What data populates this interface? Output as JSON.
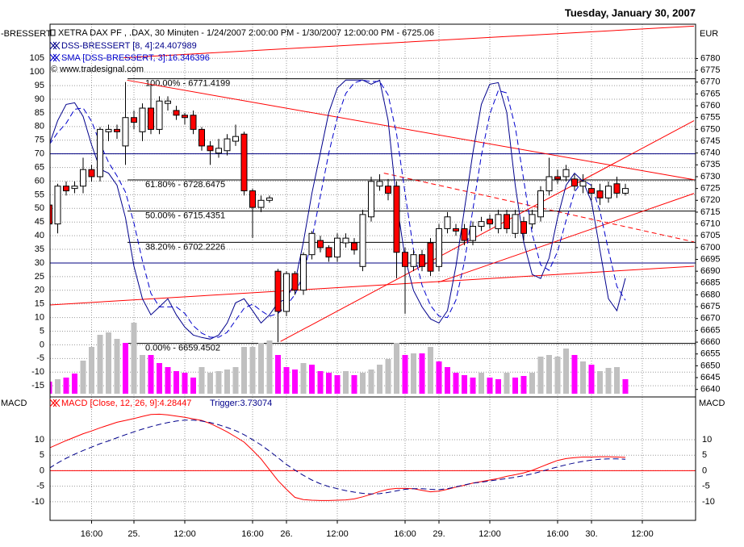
{
  "chart_data": {
    "type": "candlestick",
    "date_title": "Tuesday, January 30, 2007",
    "left_axis_title": "-BRESSERT",
    "right_axis_title": "EUR",
    "instrument": "XETRA DAX PF , .DAX, 30 Minuten - 1/24/2007 2:00:00 PM - 1/30/2007 12:00:00 PM - 6725.06",
    "copyright": "© www.tradesignal.com",
    "categories": [
      null,
      null,
      null,
      null,
      null,
      "16:00",
      null,
      null,
      null,
      null,
      "25.",
      null,
      null,
      null,
      null,
      null,
      "12:00",
      null,
      null,
      null,
      null,
      null,
      null,
      null,
      "16:00",
      null,
      null,
      null,
      "26.",
      null,
      null,
      null,
      null,
      null,
      "12:00",
      null,
      null,
      null,
      null,
      null,
      null,
      null,
      "16:00",
      null,
      null,
      null,
      "29.",
      null,
      null,
      null,
      null,
      null,
      "12:00",
      null,
      null,
      null,
      null,
      null,
      null,
      null,
      "16:00",
      null,
      null,
      null,
      "30.",
      null,
      null,
      null,
      null,
      null,
      "12:00"
    ],
    "open": [
      6718,
      6710,
      6726,
      6725,
      6726,
      6733,
      6730,
      6749,
      6750,
      6743,
      6755,
      6749,
      6759,
      6750,
      6761,
      6758,
      6756,
      6756,
      6750,
      6743,
      6740,
      6741,
      6745,
      6748,
      6724,
      6717,
      6720,
      6690,
      6673,
      6689,
      6682,
      6697,
      6703,
      6700,
      6696,
      6702,
      6702,
      6692,
      6713,
      6726,
      6726,
      6726,
      6698,
      6692,
      6697,
      6702,
      6692,
      6708,
      6708,
      6708,
      6703,
      6709,
      6712,
      6708,
      6714,
      6706,
      6711,
      6710,
      6713,
      6724,
      6730,
      6730,
      6729,
      6726,
      6725,
      6724,
      6721,
      6727,
      6723,
      null,
      null
    ],
    "high": [
      6719,
      6727,
      6728,
      6728,
      6738,
      6735,
      6751,
      6752,
      6752,
      6770,
      6758,
      6761,
      6769,
      6764,
      6764,
      6760,
      6757,
      6758,
      6751,
      6745,
      6746,
      6748,
      6752,
      6749,
      6725,
      6722,
      6722,
      6691,
      6690,
      6690,
      6698,
      6707,
      6705,
      6701,
      6706,
      6706,
      6704,
      6716,
      6730,
      6731,
      6729,
      6728,
      6700,
      6699,
      6699,
      6704,
      6710,
      6715,
      6710,
      6710,
      6711,
      6713,
      6714,
      6716,
      6716,
      6716,
      6713,
      6716,
      6726,
      6738,
      6733,
      6735,
      6731,
      6731,
      6727,
      6727,
      6728,
      6730,
      6727,
      null,
      null
    ],
    "low": [
      6708,
      6706,
      6722,
      6723,
      6723,
      6728,
      6728,
      6745,
      6746,
      6735,
      6750,
      6745,
      6748,
      6748,
      6758,
      6754,
      6752,
      6748,
      6741,
      6735,
      6738,
      6739,
      6743,
      6722,
      6704,
      6715,
      6719,
      6660,
      6671,
      6680,
      6680,
      6695,
      6698,
      6694,
      6694,
      6700,
      6697,
      6690,
      6711,
      6724,
      6720,
      6687,
      6672,
      6690,
      6690,
      6688,
      6690,
      6706,
      6705,
      6701,
      6701,
      6707,
      6708,
      6706,
      6706,
      6704,
      6703,
      6708,
      6711,
      6722,
      6727,
      6728,
      6724,
      6723,
      6720,
      6718,
      6719,
      6721,
      6722,
      null,
      null
    ],
    "close": [
      6710,
      6726,
      6724,
      6726,
      6733,
      6730,
      6750,
      6750,
      6749,
      6755,
      6753,
      6759,
      6750,
      6762,
      6762,
      6756,
      6755,
      6750,
      6743,
      6741,
      6742,
      6746,
      6747,
      6724,
      6717,
      6720,
      6721,
      6673,
      6689,
      6682,
      6697,
      6706,
      6700,
      6696,
      6704,
      6704,
      6699,
      6714,
      6728,
      6728,
      6723,
      6698,
      6692,
      6697,
      6692,
      6690,
      6708,
      6713,
      6707,
      6703,
      6709,
      6711,
      6710,
      6714,
      6708,
      6714,
      6706,
      6714,
      6724,
      6730,
      6729,
      6733,
      6726,
      6728,
      6723,
      6721,
      6726,
      6723,
      6725,
      null,
      null
    ],
    "up_color": "#ffffff",
    "down_color": "#ff0000",
    "ylim": [
      -18.5,
      117.5
    ],
    "yticks": [
      -15,
      -10,
      -5,
      0,
      5,
      10,
      15,
      20,
      25,
      30,
      35,
      40,
      45,
      50,
      55,
      60,
      65,
      70,
      75,
      80,
      85,
      90,
      95,
      100,
      105
    ],
    "y2lim": [
      6637.5,
      6794.5
    ],
    "y2ticks": [
      6640,
      6645,
      6650,
      6655,
      6660,
      6665,
      6670,
      6675,
      6680,
      6685,
      6690,
      6695,
      6700,
      6705,
      6710,
      6715,
      6720,
      6725,
      6730,
      6735,
      6740,
      6745,
      6750,
      6755,
      6760,
      6765,
      6770,
      6775,
      6780
    ],
    "grid": true,
    "series": [
      {
        "name": "DSS-BRESSERT [8, 4]:24.407989",
        "color": "#00008b",
        "dash": false,
        "values": [
          73.3,
          82.2,
          88.1,
          88.7,
          83.7,
          73.3,
          64.4,
          62.9,
          58.5,
          46.6,
          28.8,
          16.9,
          11.0,
          13.9,
          16.9,
          11.0,
          6.5,
          3.6,
          2.7,
          2.1,
          3.6,
          8.0,
          15.4,
          16.9,
          12.5,
          8.0,
          11.0,
          15.4,
          16.9,
          22.8,
          37.7,
          55.5,
          70.3,
          85.2,
          94.1,
          97.0,
          97.0,
          97.0,
          95.5,
          97.0,
          82.2,
          52.5,
          31.8,
          19.9,
          13.9,
          9.5,
          8.0,
          12.5,
          28.8,
          49.6,
          70.3,
          88.1,
          95.5,
          96.1,
          85.2,
          58.5,
          37.7,
          25.8,
          24.3,
          31.8,
          46.6,
          58.5,
          62.9,
          59.9,
          52.5,
          34.7,
          16.9,
          12.5,
          24.4,
          null,
          null
        ]
      },
      {
        "name": "SMA [DSS-BRESSERT, 3]:16.346396",
        "color": "#0000cd",
        "dash": true,
        "values": [
          73.3,
          77.8,
          81.2,
          86.3,
          86.8,
          81.9,
          73.8,
          66.9,
          61.9,
          56.0,
          44.6,
          30.8,
          18.9,
          13.9,
          13.9,
          13.9,
          11.5,
          7.0,
          4.3,
          2.8,
          2.8,
          4.6,
          9.0,
          13.4,
          14.9,
          12.5,
          10.5,
          11.5,
          14.4,
          18.4,
          25.8,
          38.7,
          54.5,
          70.3,
          83.2,
          92.1,
          96.0,
          97.0,
          96.5,
          96.5,
          91.6,
          77.2,
          55.5,
          34.7,
          21.9,
          14.4,
          10.5,
          10.0,
          16.4,
          30.3,
          49.6,
          69.3,
          84.6,
          93.2,
          92.3,
          79.9,
          60.5,
          40.7,
          29.3,
          27.3,
          34.2,
          45.6,
          56.0,
          60.4,
          58.4,
          49.0,
          34.7,
          21.4,
          16.3,
          null,
          null
        ]
      }
    ],
    "levels": [
      30,
      70
    ],
    "level_color": "#000080",
    "volume": {
      "values": [
        15,
        18,
        20,
        25,
        41,
        58,
        73,
        76,
        68,
        63,
        88,
        48,
        48,
        38,
        33,
        28,
        26,
        20,
        33,
        26,
        28,
        30,
        33,
        58,
        58,
        63,
        66,
        48,
        33,
        30,
        38,
        36,
        28,
        26,
        23,
        28,
        23,
        26,
        30,
        36,
        43,
        63,
        48,
        50,
        50,
        58,
        40,
        33,
        26,
        23,
        20,
        26,
        20,
        18,
        26,
        20,
        22,
        26,
        46,
        48,
        46,
        56,
        48,
        40,
        36,
        28,
        32,
        33,
        18,
        null,
        null
      ],
      "colors": [
        "#ff00ff",
        "#c0c0c0",
        "#ff00ff",
        "#ff00ff",
        "#c0c0c0",
        "#c0c0c0",
        "#c0c0c0",
        "#c0c0c0",
        "#c0c0c0",
        "#ff00ff",
        "#c0c0c0",
        "#c0c0c0",
        "#ff00ff",
        "#ff00ff",
        "#ff00ff",
        "#ff00ff",
        "#ff00ff",
        "#ff00ff",
        "#c0c0c0",
        "#c0c0c0",
        "#c0c0c0",
        "#c0c0c0",
        "#c0c0c0",
        "#c0c0c0",
        "#c0c0c0",
        "#c0c0c0",
        "#c0c0c0",
        "#ff00ff",
        "#ff00ff",
        "#ff00ff",
        "#c0c0c0",
        "#ff00ff",
        "#ff00ff",
        "#ff00ff",
        "#ff00ff",
        "#c0c0c0",
        "#ff00ff",
        "#c0c0c0",
        "#c0c0c0",
        "#c0c0c0",
        "#c0c0c0",
        "#c0c0c0",
        "#ff00ff",
        "#c0c0c0",
        "#ff00ff",
        "#c0c0c0",
        "#ff00ff",
        "#ff00ff",
        "#ff00ff",
        "#ff00ff",
        "#ff00ff",
        "#c0c0c0",
        "#ff00ff",
        "#ff00ff",
        "#c0c0c0",
        "#ff00ff",
        "#ff00ff",
        "#c0c0c0",
        "#c0c0c0",
        "#c0c0c0",
        "#c0c0c0",
        "#c0c0c0",
        "#ff00ff",
        "#c0c0c0",
        "#ff00ff",
        "#c0c0c0",
        "#c0c0c0",
        "#c0c0c0",
        "#ff00ff",
        null,
        null
      ]
    },
    "fibonacci": [
      {
        "value": 6771.4199,
        "label": "100.00% - 6771.4199"
      },
      {
        "value": 6728.6475,
        "label": "61.80% - 6728.6475"
      },
      {
        "value": 6715.4351,
        "label": "50.00% - 6715.4351"
      },
      {
        "value": 6702.2226,
        "label": "38.20% - 6702.2226"
      },
      {
        "value": 6659.4502,
        "label": "0.00% - 6659.4502"
      }
    ],
    "trendline_color": "#ff0000",
    "trendlines": [
      {
        "x": [
          8.8,
          76.1
        ],
        "y": [
          6780.3,
          6793.7
        ],
        "dash": false
      },
      {
        "x": [
          9.2,
          76.1
        ],
        "y": [
          6770.8,
          6728.7
        ],
        "dash": false
      },
      {
        "x": [
          -0.1,
          76.1
        ],
        "y": [
          6675.7,
          6692.1
        ],
        "dash": false
      },
      {
        "x": [
          27.3,
          76.1
        ],
        "y": [
          6660.3,
          6753.7
        ],
        "dash": false
      },
      {
        "x": [
          45.9,
          76.1
        ],
        "y": [
          6685.3,
          6722.9
        ],
        "dash": false
      },
      {
        "x": [
          39.5,
          76.1
        ],
        "y": [
          6731.5,
          6702.4
        ],
        "dash": true
      }
    ],
    "macd": {
      "title": "MACD",
      "ylim": [
        -16,
        23.5
      ],
      "yticks": [
        -10,
        -5,
        0,
        5,
        10
      ],
      "levels": [
        0
      ],
      "level_color": "#ff0000",
      "series": [
        {
          "name": "MACD [Close, 12, 26, 9]:4.28447",
          "color": "#ff0000",
          "dash": false,
          "values": [
            7.3,
            8.5,
            9.7,
            10.8,
            11.9,
            12.8,
            13.8,
            14.7,
            15.6,
            16.2,
            16.8,
            17.5,
            18.1,
            18.2,
            18.0,
            17.6,
            17.2,
            16.7,
            16.2,
            15.2,
            13.9,
            12.5,
            10.9,
            9.2,
            6.6,
            3.8,
            0.3,
            -3.2,
            -6.0,
            -8.6,
            -9.3,
            -9.5,
            -9.6,
            -9.6,
            -9.5,
            -9.4,
            -9.1,
            -8.4,
            -7.6,
            -6.7,
            -6.0,
            -5.7,
            -5.7,
            -5.8,
            -6.3,
            -6.8,
            -6.6,
            -6.0,
            -5.3,
            -4.7,
            -4.0,
            -3.5,
            -3.0,
            -2.5,
            -1.8,
            -1.3,
            -0.7,
            0.1,
            1.2,
            2.3,
            3.3,
            3.9,
            4.2,
            4.4,
            4.4,
            4.5,
            4.5,
            4.4,
            4.3,
            null,
            null
          ]
        },
        {
          "name": "Trigger:3.73074",
          "color": "#00008b",
          "dash": true,
          "values": [
            0.8,
            2.5,
            4.0,
            5.3,
            6.5,
            7.6,
            8.7,
            9.6,
            10.6,
            11.6,
            12.5,
            13.4,
            14.2,
            14.9,
            15.5,
            16.0,
            16.3,
            16.3,
            16.0,
            15.5,
            14.8,
            13.9,
            12.9,
            11.6,
            10.0,
            8.3,
            6.3,
            4.2,
            2.0,
            0.2,
            -1.5,
            -3.0,
            -4.2,
            -5.1,
            -5.8,
            -6.4,
            -6.9,
            -7.3,
            -7.5,
            -7.4,
            -7.0,
            -6.5,
            -6.0,
            -5.8,
            -5.8,
            -6.0,
            -6.1,
            -5.8,
            -5.2,
            -4.6,
            -4.0,
            -3.7,
            -3.3,
            -2.9,
            -2.5,
            -2.1,
            -1.6,
            -1.0,
            -0.3,
            0.5,
            1.2,
            1.9,
            2.5,
            3.0,
            3.4,
            3.7,
            3.8,
            3.8,
            3.7,
            null,
            null
          ]
        }
      ]
    }
  }
}
